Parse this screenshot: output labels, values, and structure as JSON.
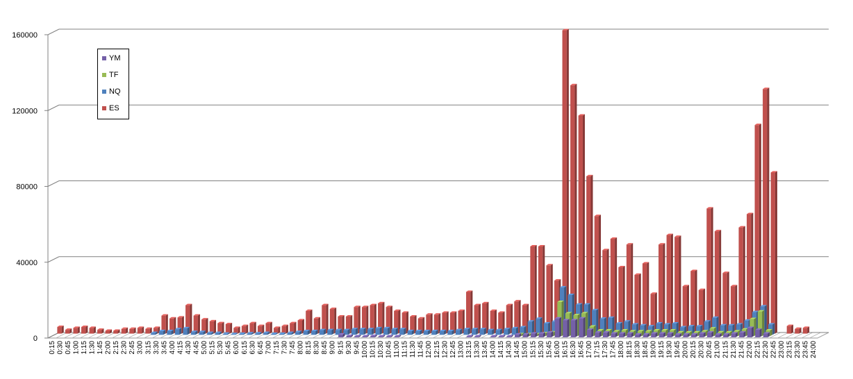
{
  "chart_data": {
    "type": "bar",
    "three_d": true,
    "ylim": [
      0,
      160000
    ],
    "yticks": [
      "0",
      "40000",
      "80000",
      "120000",
      "160000"
    ],
    "grid": true,
    "legend_position": "top-left",
    "categories": [
      "0:15",
      "0:30",
      "0:45",
      "1:00",
      "1:15",
      "1:30",
      "1:45",
      "2:00",
      "2:15",
      "2:30",
      "2:45",
      "3:00",
      "3:15",
      "3:30",
      "3:45",
      "4:00",
      "4:15",
      "4:30",
      "4:45",
      "5:00",
      "5:15",
      "5:30",
      "5:45",
      "6:00",
      "6:15",
      "6:30",
      "6:45",
      "7:00",
      "7:15",
      "7:30",
      "7:45",
      "8:00",
      "8:15",
      "8:30",
      "8:45",
      "9:00",
      "9:15",
      "9:30",
      "9:45",
      "10:00",
      "10:15",
      "10:30",
      "10:45",
      "11:00",
      "11:15",
      "11:30",
      "11:45",
      "12:00",
      "12:15",
      "12:30",
      "12:45",
      "13:00",
      "13:15",
      "13:30",
      "13:45",
      "14:00",
      "14:15",
      "14:30",
      "14:45",
      "15:00",
      "15:15",
      "15:30",
      "15:45",
      "16:00",
      "16:15",
      "16:30",
      "16:45",
      "17:00",
      "17:15",
      "17:30",
      "17:45",
      "18:00",
      "18:15",
      "18:30",
      "18:45",
      "19:00",
      "19:15",
      "19:30",
      "19:45",
      "20:00",
      "20:15",
      "20:30",
      "20:45",
      "21:00",
      "21:15",
      "21:30",
      "21:45",
      "22:00",
      "22:15",
      "22:30",
      "22:45",
      "23:00",
      "23:15",
      "23:30",
      "23:45",
      "24:00"
    ],
    "series": [
      {
        "name": "YM",
        "color": "#7460a8",
        "values": [
          0,
          0,
          0,
          0,
          0,
          0,
          0,
          0,
          0,
          0,
          0,
          0,
          0,
          0,
          0,
          0,
          0,
          0,
          0,
          0,
          0,
          0,
          0,
          0,
          0,
          0,
          0,
          0,
          0,
          0,
          0,
          0,
          0,
          0,
          0,
          0,
          1500,
          800,
          600,
          600,
          800,
          600,
          600,
          600,
          0,
          0,
          0,
          0,
          0,
          0,
          0,
          0,
          600,
          600,
          0,
          600,
          600,
          600,
          1500,
          1500,
          2000,
          2000,
          2500,
          10000,
          9000,
          9000,
          10000,
          4000,
          2500,
          2500,
          2000,
          2000,
          2000,
          1500,
          1500,
          2000,
          2000,
          2000,
          1500,
          1500,
          1500,
          2000,
          2500,
          1500,
          1500,
          2000,
          2500,
          5000,
          4000,
          2000,
          0,
          0,
          0,
          0,
          0,
          0
        ]
      },
      {
        "name": "TF",
        "color": "#98bb55",
        "values": [
          0,
          0,
          0,
          0,
          0,
          0,
          0,
          0,
          0,
          0,
          0,
          0,
          0,
          0,
          0,
          0,
          0,
          0,
          0,
          0,
          0,
          0,
          0,
          0,
          0,
          0,
          0,
          0,
          0,
          0,
          0,
          0,
          0,
          0,
          0,
          0,
          0,
          0,
          0,
          0,
          0,
          0,
          0,
          0,
          0,
          0,
          0,
          0,
          0,
          0,
          0,
          0,
          0,
          0,
          0,
          0,
          0,
          0,
          1000,
          1000,
          1000,
          1500,
          2000,
          18000,
          12000,
          11000,
          12000,
          5000,
          3000,
          3000,
          2500,
          3000,
          2500,
          2500,
          2500,
          3000,
          3000,
          3000,
          2000,
          2000,
          2000,
          2500,
          4000,
          2000,
          2000,
          2500,
          3500,
          9000,
          13000,
          3000,
          0,
          0,
          0,
          0,
          0,
          0
        ]
      },
      {
        "name": "NQ",
        "color": "#4f81bd",
        "values": [
          0,
          0,
          0,
          0,
          0,
          0,
          0,
          0,
          0,
          0,
          0,
          0,
          1000,
          2000,
          2000,
          3000,
          3500,
          1500,
          1500,
          1000,
          1000,
          600,
          400,
          500,
          800,
          800,
          1000,
          500,
          500,
          1000,
          1500,
          2000,
          2000,
          2500,
          2500,
          2500,
          2500,
          3000,
          3000,
          3000,
          3500,
          3500,
          3000,
          3000,
          2000,
          2000,
          2000,
          2000,
          2000,
          2000,
          2500,
          3000,
          3000,
          3000,
          2500,
          2500,
          3000,
          3500,
          4000,
          7000,
          8500,
          6000,
          7000,
          25000,
          21000,
          16000,
          16000,
          13000,
          8500,
          9000,
          6000,
          7000,
          5500,
          5000,
          4500,
          6000,
          5500,
          6000,
          4000,
          4500,
          4500,
          7000,
          9000,
          5000,
          5000,
          5500,
          7500,
          12000,
          15000,
          5500,
          0,
          0,
          0,
          0,
          0,
          0
        ]
      },
      {
        "name": "ES",
        "color": "#c0504d",
        "values": [
          3500,
          2000,
          3000,
          3500,
          3000,
          2000,
          1500,
          1500,
          2500,
          2500,
          3000,
          2500,
          3000,
          9500,
          8000,
          8500,
          15000,
          9500,
          7500,
          6500,
          5500,
          5000,
          3000,
          4000,
          5500,
          4000,
          5500,
          3000,
          4000,
          5500,
          7000,
          12000,
          8000,
          15000,
          13000,
          9000,
          9000,
          14000,
          14000,
          15000,
          16000,
          14000,
          12000,
          11000,
          9000,
          8000,
          10000,
          10000,
          11000,
          11000,
          12000,
          22000,
          15000,
          16000,
          12000,
          11000,
          15000,
          17000,
          15000,
          46000,
          46000,
          36000,
          28000,
          160000,
          131000,
          115000,
          83000,
          62000,
          44000,
          50000,
          35000,
          47000,
          31000,
          37000,
          21000,
          47000,
          52000,
          51000,
          25000,
          33000,
          23000,
          66000,
          54000,
          32000,
          25000,
          56000,
          63000,
          110000,
          129000,
          85000,
          0,
          4000,
          2500,
          3000,
          0,
          0
        ]
      }
    ]
  }
}
